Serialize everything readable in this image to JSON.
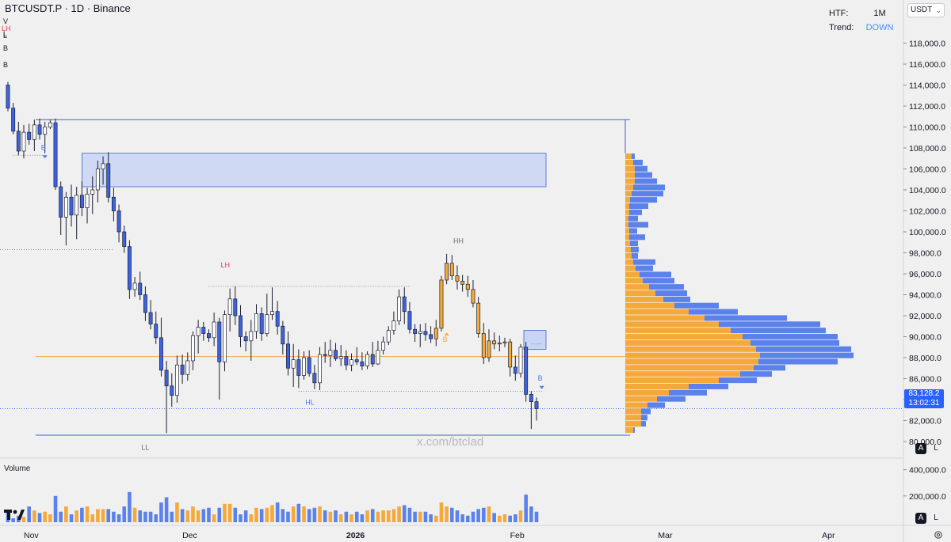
{
  "header": {
    "symbol": "BTCUSDT.P · 1D · Binance",
    "htf_label": "HTF:",
    "htf_value": "1M",
    "trend_label": "Trend:",
    "trend_value": "DOWN",
    "currency": "USDT"
  },
  "watermark": "x.com/btclad",
  "left_edge_labels": [
    "V",
    "L",
    "LH",
    "L",
    "B",
    "B"
  ],
  "colors": {
    "bull": "#f4a93b",
    "bear": "#3d63e0",
    "blue_line": "#3e62d6",
    "poc_line": "#f0a94e",
    "zone_fill": "#c9d5f5",
    "last_price": "#2962ff",
    "lh_label": "#f23645"
  },
  "last_price": {
    "value": "83,128.2",
    "countdown": "13:02:31"
  },
  "chart_data": {
    "type": "candlestick",
    "timeframe": "1D",
    "y_axis": {
      "ticks": [
        80000,
        82000,
        84000,
        86000,
        88000,
        90000,
        92000,
        94000,
        96000,
        98000,
        100000,
        102000,
        104000,
        106000,
        108000,
        110000,
        112000,
        114000,
        116000,
        118000
      ],
      "tick_labels": [
        "80,000.0",
        "82,000.0",
        "84,000.0",
        "86,000.0",
        "88,000.0",
        "90,000.0",
        "92,000.0",
        "94,000.0",
        "96,000.0",
        "98,000.0",
        "100,000.0",
        "102,000.0",
        "104,000.0",
        "106,000.0",
        "108,000.0",
        "110,000.0",
        "112,000.0",
        "114,000.0",
        "116,000.0",
        "118,000.0"
      ],
      "range": [
        79000,
        119500
      ]
    },
    "x_axis": {
      "labels": [
        {
          "text": "Nov",
          "day": 0
        },
        {
          "text": "Dec",
          "day": 30
        },
        {
          "text": "2026",
          "day": 61
        },
        {
          "text": "Feb",
          "day": 92
        },
        {
          "text": "Mar",
          "day": 120
        },
        {
          "text": "Apr",
          "day": 151
        }
      ]
    },
    "candles": [
      [
        114000,
        114300,
        111500,
        111800
      ],
      [
        111800,
        112300,
        109300,
        109600
      ],
      [
        109600,
        110500,
        107300,
        107700
      ],
      [
        107700,
        110200,
        107000,
        109500
      ],
      [
        109500,
        110300,
        108300,
        108800
      ],
      [
        108800,
        110700,
        107700,
        110200
      ],
      [
        110200,
        110800,
        108800,
        109300
      ],
      [
        109300,
        110500,
        107500,
        110000
      ],
      [
        110000,
        110700,
        109800,
        110400
      ],
      [
        110400,
        110800,
        104000,
        104300
      ],
      [
        104300,
        104800,
        99700,
        101400
      ],
      [
        101400,
        103800,
        98700,
        103300
      ],
      [
        103300,
        104500,
        100500,
        101600
      ],
      [
        101600,
        104300,
        99300,
        103500
      ],
      [
        103500,
        104800,
        101500,
        102300
      ],
      [
        102300,
        104200,
        100800,
        103600
      ],
      [
        103600,
        105300,
        101700,
        104000
      ],
      [
        104000,
        106800,
        102800,
        106000
      ],
      [
        106000,
        107200,
        104500,
        106500
      ],
      [
        106500,
        107600,
        102800,
        103300
      ],
      [
        103300,
        104200,
        101000,
        102000
      ],
      [
        102000,
        102600,
        99000,
        100000
      ],
      [
        100000,
        100600,
        98000,
        98600
      ],
      [
        98600,
        99200,
        93600,
        94500
      ],
      [
        94500,
        95700,
        93800,
        95100
      ],
      [
        95100,
        96200,
        93500,
        94000
      ],
      [
        94000,
        94800,
        91500,
        92300
      ],
      [
        92300,
        93500,
        90700,
        91200
      ],
      [
        91200,
        92400,
        89300,
        89900
      ],
      [
        89900,
        91800,
        86200,
        86800
      ],
      [
        86800,
        87700,
        80800,
        85300
      ],
      [
        85300,
        86500,
        83300,
        84400
      ],
      [
        84400,
        88200,
        83700,
        87300
      ],
      [
        87300,
        88300,
        85500,
        86400
      ],
      [
        86400,
        88500,
        85800,
        87700
      ],
      [
        87700,
        90500,
        86800,
        90100
      ],
      [
        90100,
        91600,
        88400,
        90900
      ],
      [
        90900,
        91400,
        89600,
        90300
      ],
      [
        90300,
        90700,
        89500,
        89900
      ],
      [
        89900,
        92300,
        89100,
        91400
      ],
      [
        91400,
        91800,
        84000,
        87600
      ],
      [
        87600,
        92500,
        86700,
        92100
      ],
      [
        92100,
        94600,
        90500,
        93600
      ],
      [
        93600,
        94800,
        91100,
        92000
      ],
      [
        92000,
        93000,
        89000,
        90000
      ],
      [
        90000,
        90500,
        88600,
        89600
      ],
      [
        89600,
        91600,
        87700,
        90500
      ],
      [
        90500,
        93100,
        89800,
        92200
      ],
      [
        92200,
        92800,
        89600,
        90300
      ],
      [
        90300,
        94100,
        90000,
        92100
      ],
      [
        92100,
        94700,
        91600,
        92400
      ],
      [
        92400,
        93400,
        90200,
        91000
      ],
      [
        91000,
        91500,
        88300,
        89300
      ],
      [
        89300,
        90500,
        86300,
        87000
      ],
      [
        87000,
        89300,
        85200,
        87800
      ],
      [
        87800,
        88800,
        85100,
        86300
      ],
      [
        86300,
        88600,
        85900,
        88000
      ],
      [
        88000,
        88700,
        86200,
        86500
      ],
      [
        86500,
        87300,
        85000,
        85600
      ],
      [
        85600,
        89000,
        84900,
        88300
      ],
      [
        88300,
        89500,
        87500,
        88200
      ],
      [
        88200,
        89700,
        87100,
        88700
      ],
      [
        88700,
        89400,
        87700,
        87900
      ],
      [
        87900,
        89200,
        87200,
        88100
      ],
      [
        88100,
        88700,
        86800,
        87300
      ],
      [
        87300,
        88400,
        86700,
        87800
      ],
      [
        87800,
        89000,
        87300,
        87600
      ],
      [
        87600,
        88500,
        86800,
        87200
      ],
      [
        87200,
        88600,
        86900,
        88300
      ],
      [
        88300,
        89500,
        87100,
        87400
      ],
      [
        87400,
        89600,
        87300,
        88700
      ],
      [
        88700,
        90000,
        88300,
        89500
      ],
      [
        89500,
        91000,
        89200,
        90600
      ],
      [
        90600,
        92400,
        90200,
        91500
      ],
      [
        91500,
        94500,
        91100,
        93800
      ],
      [
        93800,
        94700,
        91200,
        92400
      ],
      [
        92400,
        93300,
        90300,
        90700
      ],
      [
        90700,
        91200,
        89500,
        90300
      ],
      [
        90300,
        91200,
        89000,
        90500
      ],
      [
        90500,
        91300,
        89600,
        90200
      ],
      [
        90200,
        91000,
        89400,
        89800
      ],
      [
        89800,
        91600,
        89100,
        90800
      ],
      [
        90800,
        95800,
        90500,
        95400
      ],
      [
        95400,
        97900,
        95000,
        97000
      ],
      [
        97000,
        97800,
        95400,
        95800
      ],
      [
        95800,
        96800,
        94500,
        95300
      ],
      [
        95300,
        95900,
        94300,
        95000
      ],
      [
        95000,
        95800,
        93800,
        94500
      ],
      [
        94500,
        95400,
        92800,
        93200
      ],
      [
        93200,
        93800,
        89900,
        90300
      ],
      [
        90300,
        91300,
        87400,
        88000
      ],
      [
        88000,
        90700,
        87600,
        89600
      ],
      [
        89600,
        90400,
        88800,
        89300
      ],
      [
        89300,
        90100,
        88600,
        89400
      ],
      [
        89400,
        89900,
        89000,
        89500
      ],
      [
        89500,
        89800,
        86200,
        87100
      ],
      [
        87100,
        88200,
        85800,
        86500
      ],
      [
        86500,
        89300,
        86100,
        89000
      ],
      [
        89000,
        89500,
        83800,
        84500
      ],
      [
        84500,
        84800,
        81200,
        83800
      ],
      [
        83800,
        84200,
        82000,
        83128
      ]
    ],
    "volume": {
      "axis_ticks": [
        200000,
        400000
      ],
      "axis_labels": [
        "200,000.0",
        "400,000.0"
      ],
      "range": [
        0,
        470000
      ],
      "values": [
        80000,
        30000,
        50000,
        40000,
        120000,
        90000,
        70000,
        80000,
        60000,
        200000,
        80000,
        120000,
        60000,
        90000,
        110000,
        120000,
        60000,
        100000,
        100000,
        100000,
        80000,
        60000,
        120000,
        230000,
        110000,
        90000,
        80000,
        80000,
        60000,
        150000,
        190000,
        80000,
        150000,
        100000,
        90000,
        120000,
        90000,
        100000,
        110000,
        60000,
        110000,
        140000,
        140000,
        110000,
        60000,
        90000,
        60000,
        110000,
        100000,
        110000,
        130000,
        150000,
        100000,
        80000,
        120000,
        140000,
        120000,
        100000,
        110000,
        120000,
        90000,
        80000,
        90000,
        60000,
        80000,
        60000,
        80000,
        60000,
        90000,
        100000,
        80000,
        90000,
        90000,
        100000,
        120000,
        130000,
        110000,
        80000,
        80000,
        80000,
        60000,
        50000,
        150000,
        120000,
        110000,
        90000,
        60000,
        50000,
        80000,
        100000,
        110000,
        120000,
        70000,
        50000,
        60000,
        50000,
        60000,
        90000,
        210000,
        120000,
        80000
      ]
    },
    "volume_profile": {
      "price_from": 80800,
      "price_to": 107500,
      "rows": 45,
      "up_values": [
        10,
        20,
        20,
        20,
        28,
        40,
        55,
        80,
        118,
        145,
        162,
        168,
        170,
        165,
        158,
        148,
        133,
        118,
        100,
        80,
        62,
        48,
        38,
        30,
        22,
        18,
        13,
        10,
        8,
        7,
        6,
        5,
        5,
        4,
        4,
        5,
        5,
        6,
        8,
        10,
        12,
        12,
        12,
        10,
        8
      ],
      "down_values": [
        2,
        6,
        8,
        12,
        22,
        36,
        48,
        50,
        48,
        40,
        40,
        100,
        118,
        120,
        112,
        120,
        120,
        128,
        104,
        62,
        56,
        34,
        40,
        44,
        40,
        40,
        22,
        28,
        8,
        10,
        10,
        20,
        10,
        25,
        12,
        16,
        24,
        34,
        40,
        40,
        28,
        22,
        16,
        12,
        4
      ],
      "poc_price": 88100
    },
    "annotations": [
      {
        "text": "LH",
        "price": 96600,
        "day": 41,
        "color": "red"
      },
      {
        "text": "HH",
        "price": 98900,
        "day": 85,
        "color": "gray"
      },
      {
        "text": "HL",
        "price": 83500,
        "day": 57,
        "color": "blue"
      },
      {
        "text": "LL",
        "price": 79200,
        "day": 26,
        "color": "gray"
      },
      {
        "text": "B",
        "price": 107800,
        "day": 7,
        "color": "blue"
      },
      {
        "text": "B",
        "price": 89500,
        "day": 83,
        "color": "orange"
      },
      {
        "text": "B",
        "price": 85800,
        "day": 101,
        "color": "blue"
      }
    ],
    "levels": {
      "range_high": 110700,
      "range_low": 80600,
      "poc": 88100,
      "supply_zone": [
        104300,
        107500
      ],
      "demand_zone": [
        88800,
        90600
      ],
      "dotted": [
        {
          "price": 107300,
          "from_day": 1,
          "to_day": 7
        },
        {
          "price": 98300,
          "from_day": -2,
          "to_day": 20
        },
        {
          "price": 94800,
          "from_day": 38,
          "to_day": 76
        },
        {
          "price": 84800,
          "from_day": 55,
          "to_day": 101
        },
        {
          "price": 89300,
          "from_day": 99,
          "to_day": 101
        }
      ]
    },
    "grid": false,
    "title": "BTCUSDT.P · 1D · Binance"
  }
}
